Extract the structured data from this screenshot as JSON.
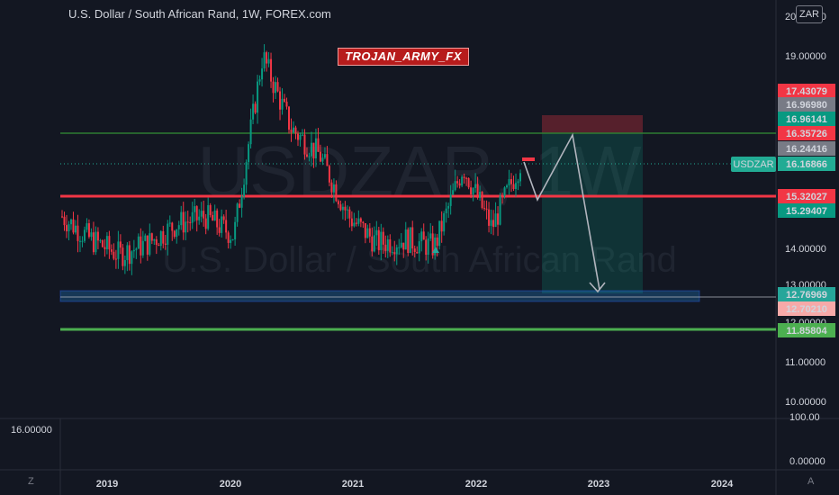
{
  "header": {
    "title": "U.S. Dollar / South African Rand, 1W, FOREX.com",
    "currency_button": "ZAR"
  },
  "annotation_banner": "TROJAN_ARMY_FX",
  "watermark": {
    "symbol": "USDZAR, 1W",
    "description": "U.S. Dollar / South African Rand"
  },
  "symbol_label": "USDZAR",
  "price_tags": [
    {
      "value": "17.43079",
      "color": "#f23645"
    },
    {
      "value": "16.96980",
      "color": "#787b86"
    },
    {
      "value": "16.96141",
      "color": "#089981"
    },
    {
      "value": "16.35726",
      "color": "#f23645"
    },
    {
      "value": "16.24416",
      "color": "#787b86"
    },
    {
      "value": "16.16866",
      "color": "#22ab94"
    },
    {
      "value": "15.32027",
      "color": "#f23645"
    },
    {
      "value": "15.29407",
      "color": "#089981"
    },
    {
      "value": "12.76969",
      "color": "#26a69a"
    },
    {
      "value": "12.70210",
      "color": "#f7a9a8"
    },
    {
      "value": "11.85804",
      "color": "#4caf50"
    }
  ],
  "y_axis_labels": [
    "20.00000",
    "19.00000",
    "14.00000",
    "13.00000",
    "12.00000",
    "11.00000",
    "10.00000"
  ],
  "x_axis_labels": [
    "2019",
    "2020",
    "2021",
    "2022",
    "2023",
    "2024"
  ],
  "sub_pane": {
    "left_value": "16.00000",
    "right_labels": [
      "100.00",
      "0.00000"
    ]
  },
  "corner_buttons": {
    "left": "Z",
    "right": "A"
  },
  "chart_data": {
    "type": "line",
    "title": "U.S. Dollar / South African Rand, 1W, FOREX.com",
    "x": [
      "2018-07",
      "2018-10",
      "2019-01",
      "2019-04",
      "2019-07",
      "2019-10",
      "2020-01",
      "2020-04",
      "2020-07",
      "2020-10",
      "2021-01",
      "2021-04",
      "2021-07",
      "2021-10",
      "2022-01",
      "2022-04",
      "2022-05"
    ],
    "series": [
      {
        "name": "USDZAR",
        "values": [
          14.8,
          14.2,
          13.8,
          14.1,
          14.6,
          14.8,
          14.3,
          19.0,
          17.1,
          16.4,
          14.8,
          14.1,
          14.2,
          14.0,
          16.1,
          14.5,
          16.2
        ]
      }
    ],
    "ylim": [
      10.0,
      20.0
    ],
    "horizontal_levels": [
      16.35726,
      15.32027,
      12.76969,
      11.85804
    ],
    "grid": false
  }
}
